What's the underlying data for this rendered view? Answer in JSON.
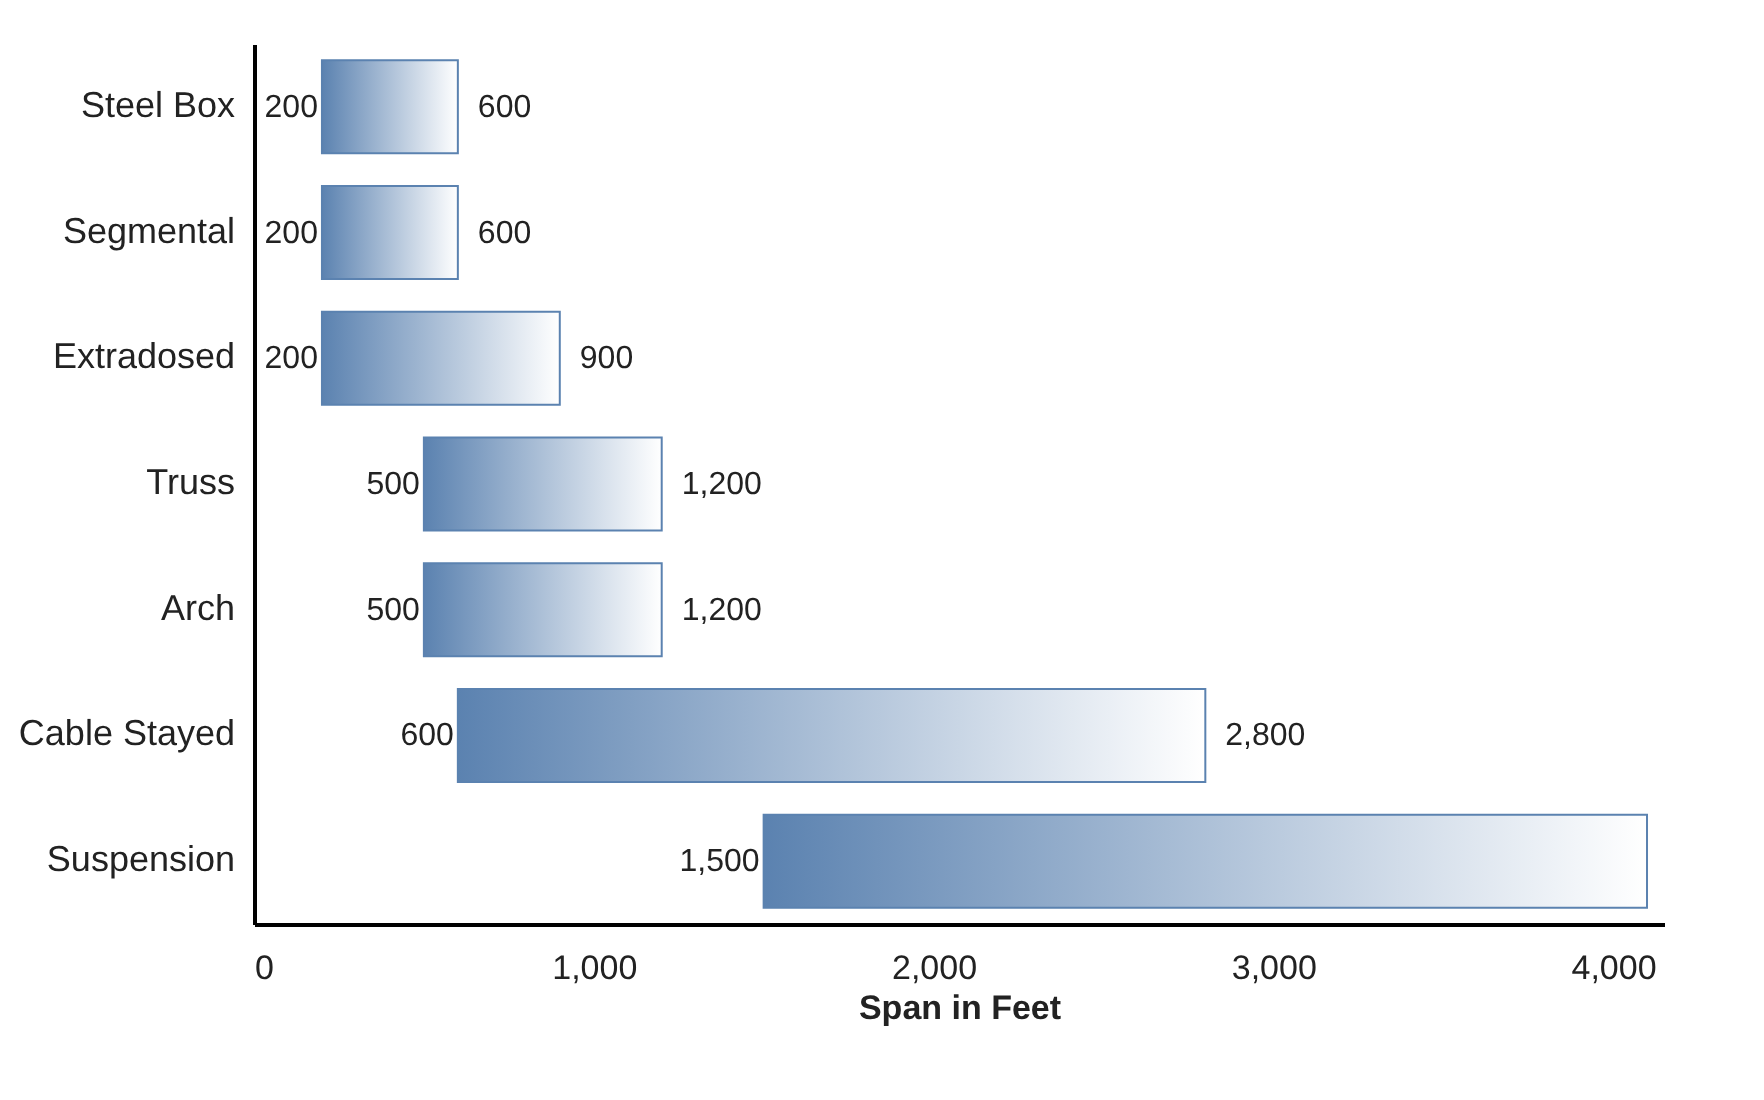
{
  "chart_data": {
    "type": "bar",
    "orientation": "horizontal",
    "xlabel": "Span in Feet",
    "categories": [
      "Steel Box",
      "Segmental",
      "Extradosed",
      "Truss",
      "Arch",
      "Cable Stayed",
      "Suspension"
    ],
    "base": [
      200,
      200,
      200,
      500,
      500,
      600,
      1500
    ],
    "values": [
      400,
      400,
      700,
      700,
      700,
      2200,
      2600
    ],
    "color": "#5b82b0",
    "xlim": [
      0,
      4150
    ],
    "xticks": [
      0,
      {
        "value": 1000,
        "label": "1,000"
      },
      {
        "value": 2000,
        "label": "2,000"
      },
      {
        "value": 3000,
        "label": "3,000"
      },
      {
        "value": 4000,
        "label": "4,000"
      }
    ],
    "grid": false,
    "annotations": [
      {
        "text": "200",
        "x": 200,
        "y": "Steel Box"
      },
      {
        "text": "600",
        "x": 600,
        "y": "Steel Box"
      },
      {
        "text": "200",
        "x": 200,
        "y": "Segmental"
      },
      {
        "text": "600",
        "x": 600,
        "y": "Segmental"
      },
      {
        "text": "200",
        "x": 200,
        "y": "Extradosed"
      },
      {
        "text": "900",
        "x": 900,
        "y": "Extradosed"
      },
      {
        "text": "500",
        "x": 500,
        "y": "Truss"
      },
      {
        "text": "1,200",
        "x": 1200,
        "y": "Truss"
      },
      {
        "text": "500",
        "x": 500,
        "y": "Arch"
      },
      {
        "text": "1,200",
        "x": 1200,
        "y": "Arch"
      },
      {
        "text": "600",
        "x": 600,
        "y": "Cable Stayed"
      },
      {
        "text": "2,800",
        "x": 2800,
        "y": "Cable Stayed"
      },
      {
        "text": "1,500",
        "x": 1500,
        "y": "Suspension"
      }
    ]
  }
}
